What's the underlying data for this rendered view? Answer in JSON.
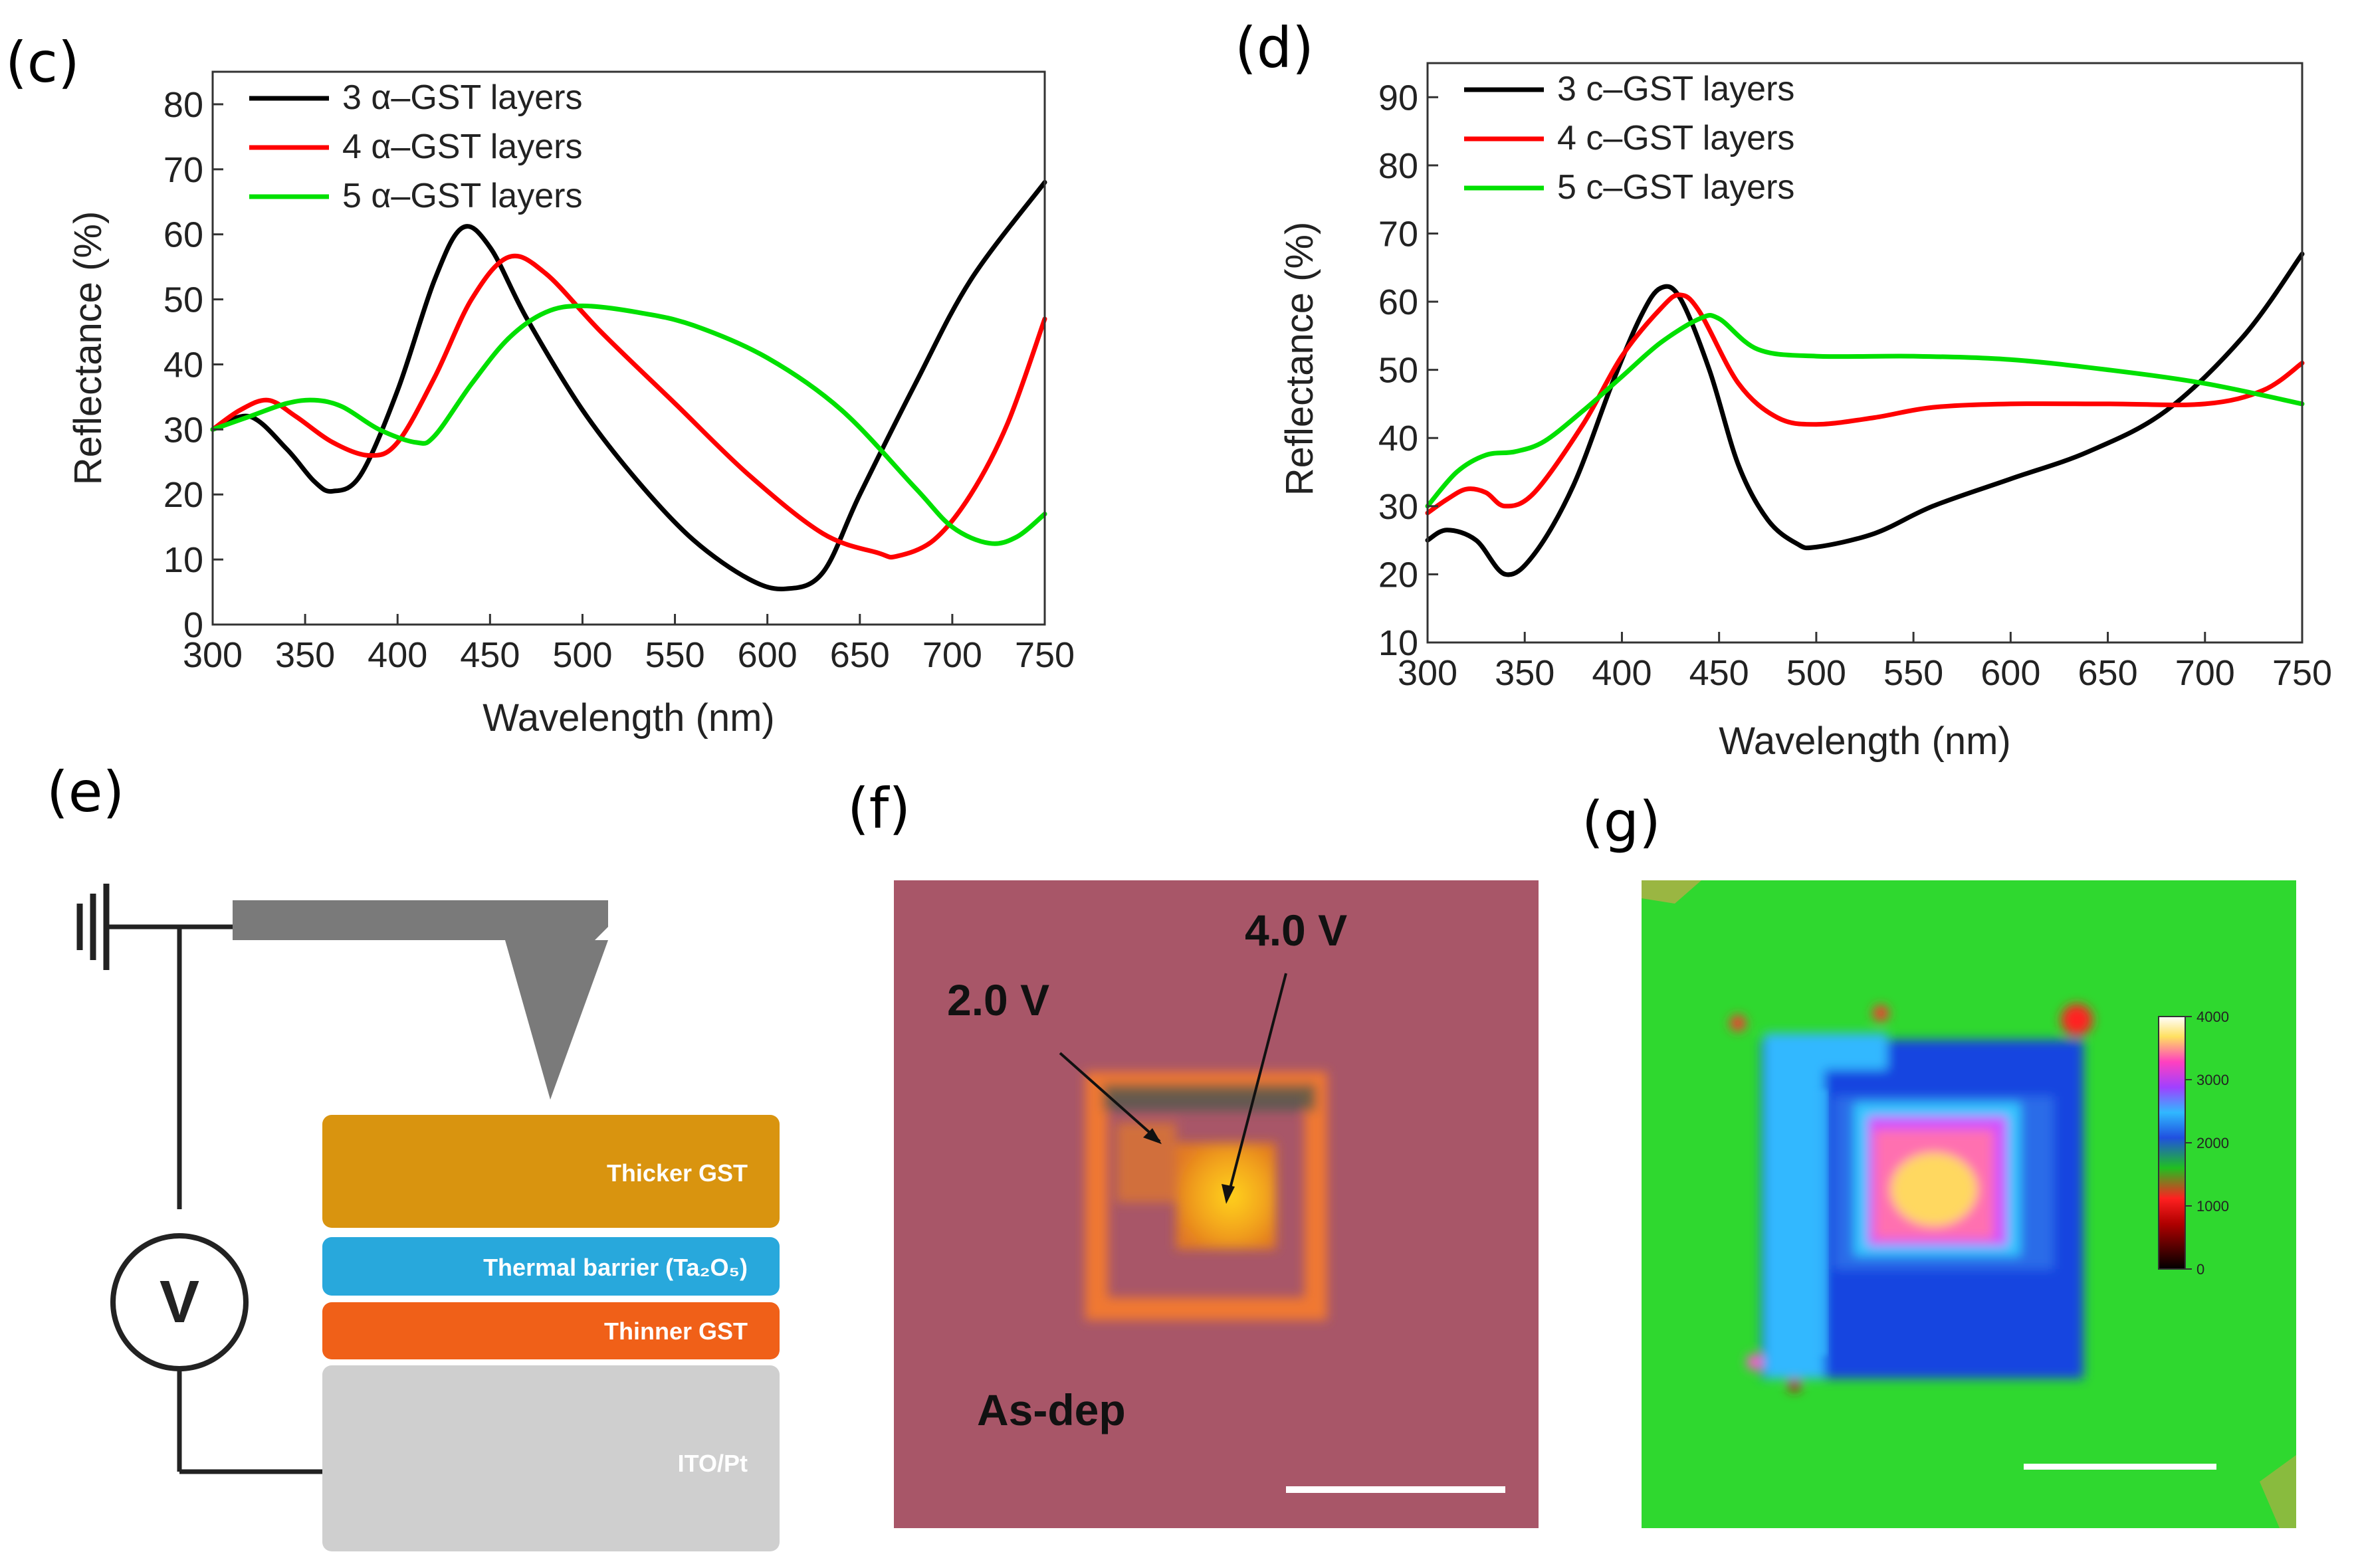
{
  "panel_labels": {
    "c": "(c)",
    "d": "(d)",
    "e": "(e)",
    "f": "(f)",
    "g": "(g)"
  },
  "chart_data": [
    {
      "id": "c",
      "type": "line",
      "xlabel": "Wavelength (nm)",
      "ylabel": "Reflectance (%)",
      "xlim": [
        300,
        750
      ],
      "ylim": [
        0,
        85
      ],
      "xticks": [
        300,
        350,
        400,
        450,
        500,
        550,
        600,
        650,
        700,
        750
      ],
      "yticks": [
        0,
        10,
        20,
        30,
        40,
        50,
        60,
        70,
        80
      ],
      "legend_position": "top-left",
      "series": [
        {
          "name": "3 α–GST layers",
          "color": "#000000",
          "x": [
            300,
            320,
            340,
            355,
            365,
            380,
            400,
            420,
            435,
            450,
            470,
            500,
            530,
            560,
            590,
            610,
            630,
            650,
            680,
            710,
            750
          ],
          "y": [
            30,
            32,
            27,
            22,
            20.5,
            23,
            36,
            53,
            61,
            58,
            47,
            33,
            22,
            13,
            7,
            5.5,
            8,
            20,
            37,
            53,
            68
          ]
        },
        {
          "name": "4 α–GST layers",
          "color": "#ff0000",
          "x": [
            300,
            315,
            330,
            345,
            365,
            385,
            400,
            420,
            440,
            460,
            480,
            510,
            550,
            590,
            630,
            660,
            670,
            690,
            710,
            730,
            750
          ],
          "y": [
            30,
            33,
            34.5,
            32,
            28,
            26,
            28,
            38,
            50,
            56.5,
            54,
            45,
            34,
            23,
            14,
            11,
            10.5,
            13,
            20,
            31,
            47
          ]
        },
        {
          "name": "5 α–GST layers",
          "color": "#00e000",
          "x": [
            300,
            320,
            340,
            355,
            370,
            390,
            410,
            420,
            440,
            460,
            480,
            500,
            530,
            560,
            600,
            640,
            680,
            700,
            720,
            735,
            750
          ],
          "y": [
            30,
            32,
            34,
            34.5,
            33.5,
            30,
            28,
            29,
            37,
            44,
            48,
            49,
            48,
            46,
            41,
            33,
            21,
            15,
            12.5,
            13.5,
            17
          ]
        }
      ]
    },
    {
      "id": "d",
      "type": "line",
      "xlabel": "Wavelength (nm)",
      "ylabel": "Reflectance (%)",
      "xlim": [
        300,
        750
      ],
      "ylim": [
        10,
        95
      ],
      "xticks": [
        300,
        350,
        400,
        450,
        500,
        550,
        600,
        650,
        700,
        750
      ],
      "yticks": [
        10,
        20,
        30,
        40,
        50,
        60,
        70,
        80,
        90
      ],
      "legend_position": "top-left",
      "series": [
        {
          "name": "3 c–GST layers",
          "color": "#000000",
          "x": [
            300,
            310,
            325,
            340,
            355,
            375,
            395,
            410,
            420,
            430,
            445,
            460,
            475,
            490,
            500,
            530,
            560,
            600,
            640,
            680,
            720,
            750
          ],
          "y": [
            25,
            26.5,
            25,
            20,
            23,
            33,
            48,
            58,
            62,
            60.5,
            50,
            36,
            28,
            24.5,
            24,
            26,
            30,
            34,
            38,
            44,
            55,
            67
          ]
        },
        {
          "name": "4 c–GST layers",
          "color": "#ff0000",
          "x": [
            300,
            310,
            320,
            330,
            340,
            355,
            380,
            400,
            420,
            430,
            440,
            460,
            480,
            500,
            530,
            560,
            600,
            650,
            700,
            730,
            750
          ],
          "y": [
            29,
            31,
            32.5,
            32,
            30,
            32,
            42,
            52,
            59,
            61,
            58.5,
            48,
            43,
            42,
            43,
            44.5,
            45,
            45,
            45,
            47,
            51
          ]
        },
        {
          "name": "5 c–GST layers",
          "color": "#00e000",
          "x": [
            300,
            315,
            330,
            345,
            360,
            380,
            400,
            420,
            440,
            450,
            470,
            500,
            550,
            600,
            650,
            700,
            750
          ],
          "y": [
            30,
            35,
            37.5,
            38,
            39.5,
            44,
            49,
            54,
            57.5,
            57.5,
            53,
            52,
            52,
            51.5,
            50,
            48,
            45
          ]
        }
      ]
    }
  ],
  "schematic": {
    "layers": [
      {
        "label": "Thicker GST",
        "color": "#d9940f"
      },
      {
        "label": "Thermal barrier (Ta₂O₅)",
        "color": "#28a8dc"
      },
      {
        "label": "Thinner GST",
        "color": "#f06018"
      },
      {
        "label": "ITO/Pt",
        "color": "#cfcfcf"
      }
    ],
    "voltmeter_label": "V"
  },
  "optical_image": {
    "annotations": [
      "2.0 V",
      "4.0 V",
      "As-dep"
    ],
    "background_color": "#a85668"
  },
  "raman_map": {
    "colorbar_ticks": [
      "0",
      "1000",
      "2000",
      "3000",
      "4000"
    ],
    "background_color": "#2fd82f"
  }
}
